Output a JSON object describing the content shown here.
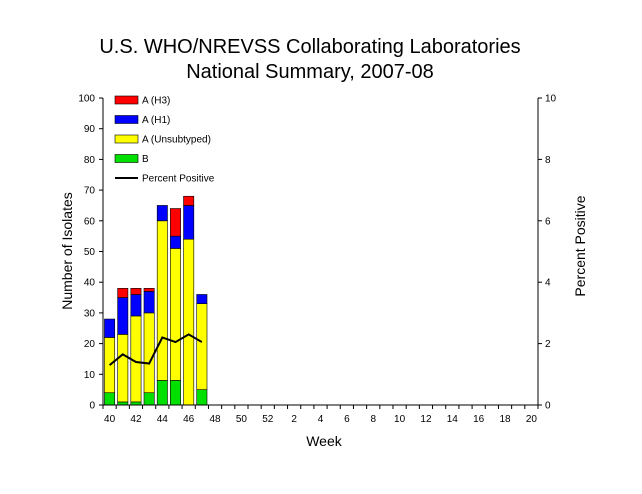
{
  "chart_data": {
    "type": "bar",
    "title": "U.S. WHO/NREVSS Collaborating Laboratories",
    "subtitle": "National Summary, 2007-08",
    "xlabel": "Week",
    "ylabel": "Number of Isolates",
    "y2label": "Percent Positive",
    "ylim": [
      0,
      100
    ],
    "y2lim": [
      0,
      10
    ],
    "yticks": [
      "0",
      "10",
      "20",
      "30",
      "40",
      "50",
      "60",
      "70",
      "80",
      "90",
      "100"
    ],
    "y2ticks": [
      "0",
      "2",
      "4",
      "6",
      "8",
      "10"
    ],
    "weeks": [
      "40",
      "41",
      "42",
      "43",
      "44",
      "45",
      "46",
      "47",
      "48",
      "49",
      "50",
      "51",
      "52",
      "1",
      "2",
      "3",
      "4",
      "5",
      "6",
      "7",
      "8",
      "9",
      "10",
      "11",
      "12",
      "13",
      "14",
      "15",
      "16",
      "17",
      "18",
      "19",
      "20"
    ],
    "xtick_labels": [
      "40",
      "42",
      "44",
      "46",
      "48",
      "50",
      "52",
      "2",
      "4",
      "6",
      "8",
      "10",
      "12",
      "14",
      "16",
      "18",
      "20"
    ],
    "stacked": true,
    "legend_position": "top-left",
    "grid": false,
    "series": [
      {
        "name": "B",
        "color": "#00e000",
        "values": [
          4,
          1,
          1,
          4,
          8,
          8,
          0,
          5
        ]
      },
      {
        "name": "A (Unsubtyped)",
        "color": "#ffff00",
        "values": [
          18,
          22,
          28,
          26,
          52,
          43,
          54,
          28
        ]
      },
      {
        "name": "A (H1)",
        "color": "#0000ff",
        "values": [
          6,
          12,
          7,
          7,
          5,
          4,
          11,
          3
        ]
      },
      {
        "name": "A (H3)",
        "color": "#ff0000",
        "values": [
          0,
          3,
          2,
          1,
          0,
          9,
          3,
          0
        ]
      }
    ],
    "line": {
      "name": "Percent Positive",
      "color": "#000000",
      "axis": "right",
      "values": [
        1.3,
        1.65,
        1.4,
        1.35,
        2.2,
        2.05,
        2.3,
        2.05
      ]
    },
    "legend_order": [
      "A (H3)",
      "A (H1)",
      "A (Unsubtyped)",
      "B",
      "Percent Positive"
    ]
  }
}
